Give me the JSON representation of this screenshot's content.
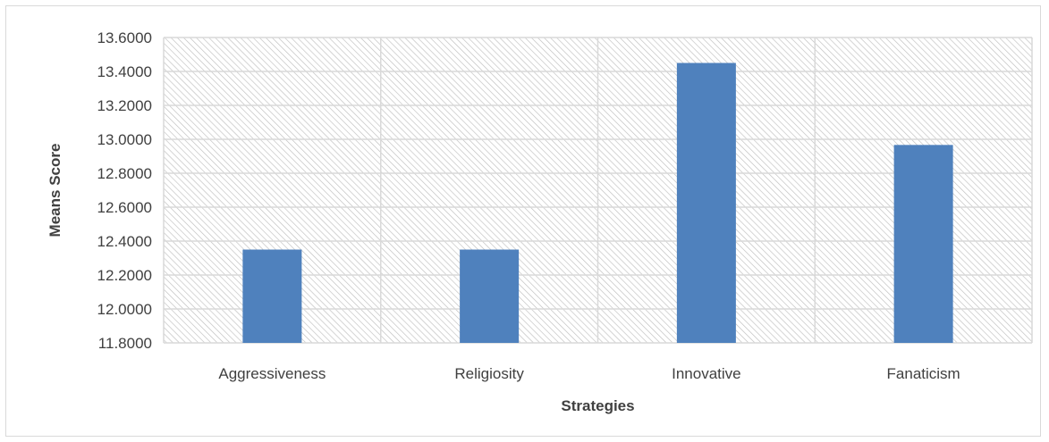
{
  "chart_data": {
    "type": "bar",
    "categories": [
      "Aggressiveness",
      "Religiosity",
      "Innovative",
      "Fanaticism"
    ],
    "values": [
      12.35,
      12.35,
      13.45,
      12.9667
    ],
    "xlabel": "Strategies",
    "ylabel": "Means Score",
    "ylim": [
      11.8,
      13.6
    ],
    "yticks": [
      "11.8000",
      "12.0000",
      "12.2000",
      "12.4000",
      "12.6000",
      "12.8000",
      "13.0000",
      "13.2000",
      "13.4000",
      "13.6000"
    ],
    "grid": true,
    "legend": "none",
    "bar_color": "#4f81bd",
    "plot_background": "hatched"
  }
}
